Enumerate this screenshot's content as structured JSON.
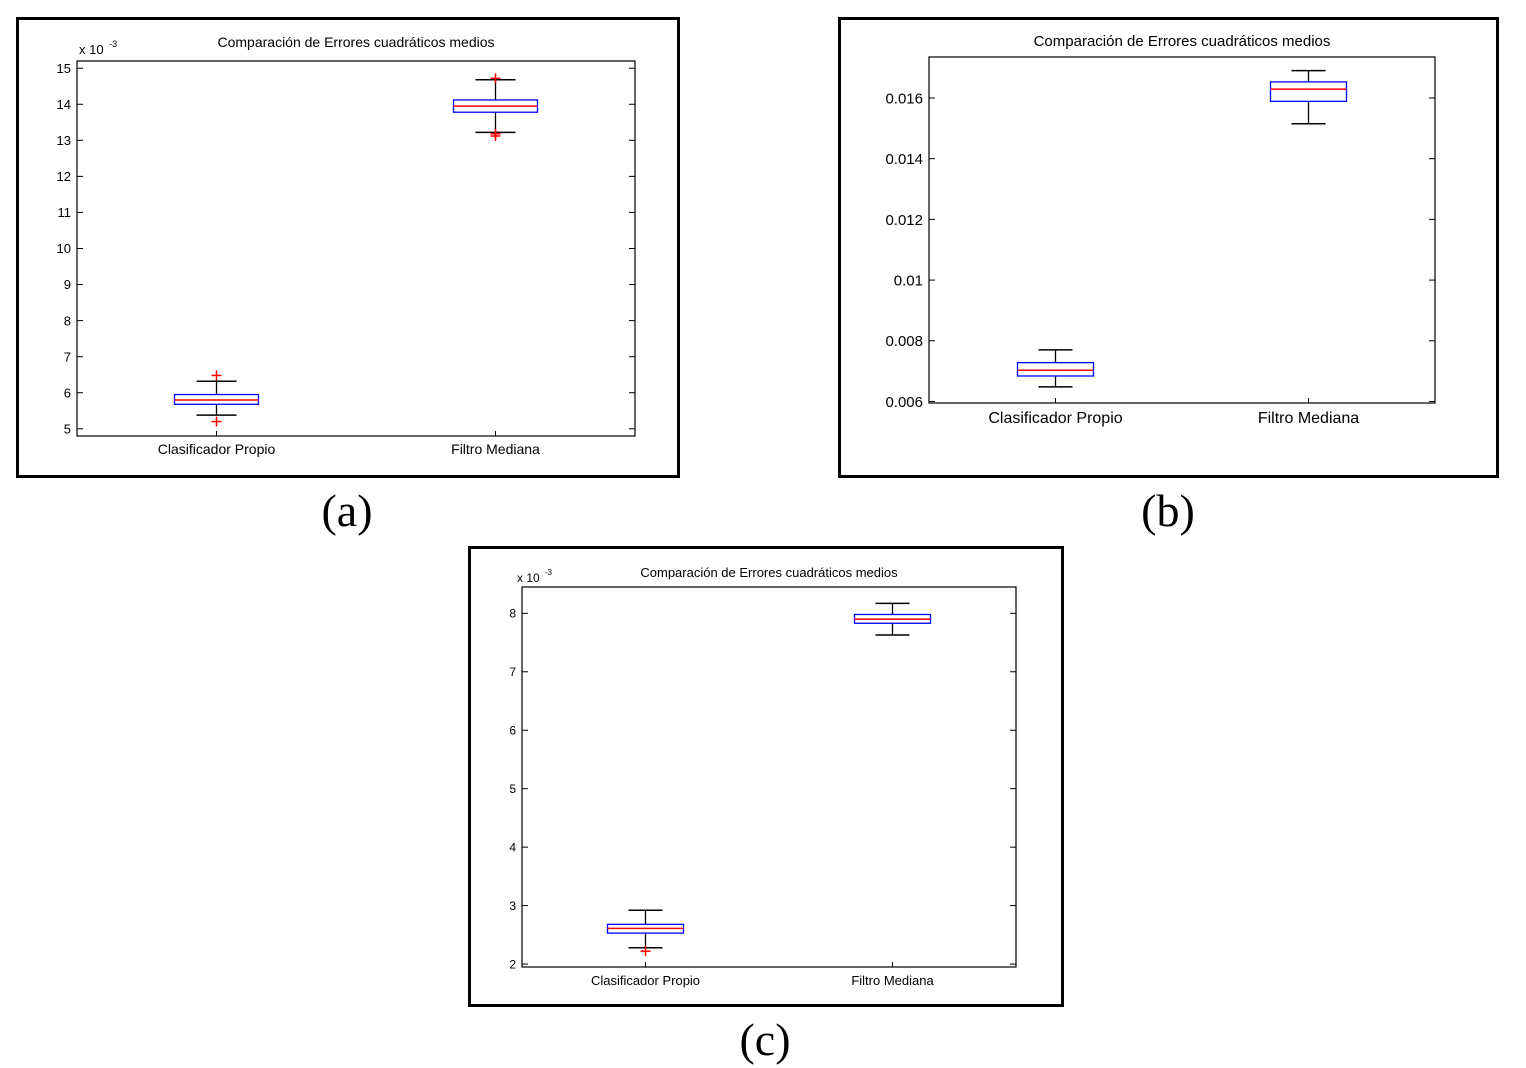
{
  "chart_data": [
    {
      "type": "boxplot",
      "title": "Comparación de Errores cuadráticos medios",
      "caption": "(a)",
      "scale_base": "x 10",
      "scale_exponent": "-3",
      "categories": [
        "Clasificador Propio",
        "Filtro Mediana"
      ],
      "ylim": [
        4.8,
        15.2
      ],
      "yticks": [
        5,
        6,
        7,
        8,
        9,
        10,
        11,
        12,
        13,
        14,
        15
      ],
      "ytick_labels": [
        "5",
        "6",
        "7",
        "8",
        "9",
        "10",
        "11",
        "12",
        "13",
        "14",
        "15"
      ],
      "boxes": [
        {
          "category": "Clasificador Propio",
          "whisker_low": 5.38,
          "q1": 5.68,
          "median": 5.8,
          "q3": 5.95,
          "whisker_high": 6.32,
          "outliers": [
            5.2,
            6.48
          ]
        },
        {
          "category": "Filtro Mediana",
          "whisker_low": 13.22,
          "q1": 13.78,
          "median": 13.95,
          "q3": 14.12,
          "whisker_high": 14.68,
          "outliers": [
            13.12,
            13.18,
            14.72
          ]
        }
      ],
      "colors": {
        "box": "#0000ff",
        "median": "#ff0000",
        "whisker": "#000000",
        "outlier": "#ff0000"
      }
    },
    {
      "type": "boxplot",
      "title": "Comparación de Errores cuadráticos medios",
      "caption": "(b)",
      "scale_base": "",
      "scale_exponent": "",
      "categories": [
        "Clasificador Propio",
        "Filtro Mediana"
      ],
      "ylim": [
        0.00595,
        0.01735
      ],
      "yticks": [
        0.006,
        0.008,
        0.01,
        0.012,
        0.014,
        0.016
      ],
      "ytick_labels": [
        "0.006",
        "0.008",
        "0.01",
        "0.012",
        "0.014",
        "0.016"
      ],
      "boxes": [
        {
          "category": "Clasificador Propio",
          "whisker_low": 0.00648,
          "q1": 0.00684,
          "median": 0.00703,
          "q3": 0.00728,
          "whisker_high": 0.0077,
          "outliers": []
        },
        {
          "category": "Filtro Mediana",
          "whisker_low": 0.01515,
          "q1": 0.01589,
          "median": 0.01629,
          "q3": 0.01653,
          "whisker_high": 0.0169,
          "outliers": []
        }
      ],
      "colors": {
        "box": "#0000ff",
        "median": "#ff0000",
        "whisker": "#000000",
        "outlier": "#ff0000"
      }
    },
    {
      "type": "boxplot",
      "title": "Comparación de Errores cuadráticos medios",
      "caption": "(c)",
      "scale_base": "x 10",
      "scale_exponent": "-3",
      "categories": [
        "Clasificador Propio",
        "Filtro Mediana"
      ],
      "ylim": [
        1.95,
        8.45
      ],
      "yticks": [
        2,
        3,
        4,
        5,
        6,
        7,
        8
      ],
      "ytick_labels": [
        "2",
        "3",
        "4",
        "5",
        "6",
        "7",
        "8"
      ],
      "boxes": [
        {
          "category": "Clasificador Propio",
          "whisker_low": 2.28,
          "q1": 2.53,
          "median": 2.61,
          "q3": 2.68,
          "whisker_high": 2.92,
          "outliers": [
            2.22
          ]
        },
        {
          "category": "Filtro Mediana",
          "whisker_low": 7.63,
          "q1": 7.83,
          "median": 7.9,
          "q3": 7.98,
          "whisker_high": 8.17,
          "outliers": []
        }
      ],
      "colors": {
        "box": "#0000ff",
        "median": "#ff0000",
        "whisker": "#000000",
        "outlier": "#ff0000"
      }
    }
  ]
}
